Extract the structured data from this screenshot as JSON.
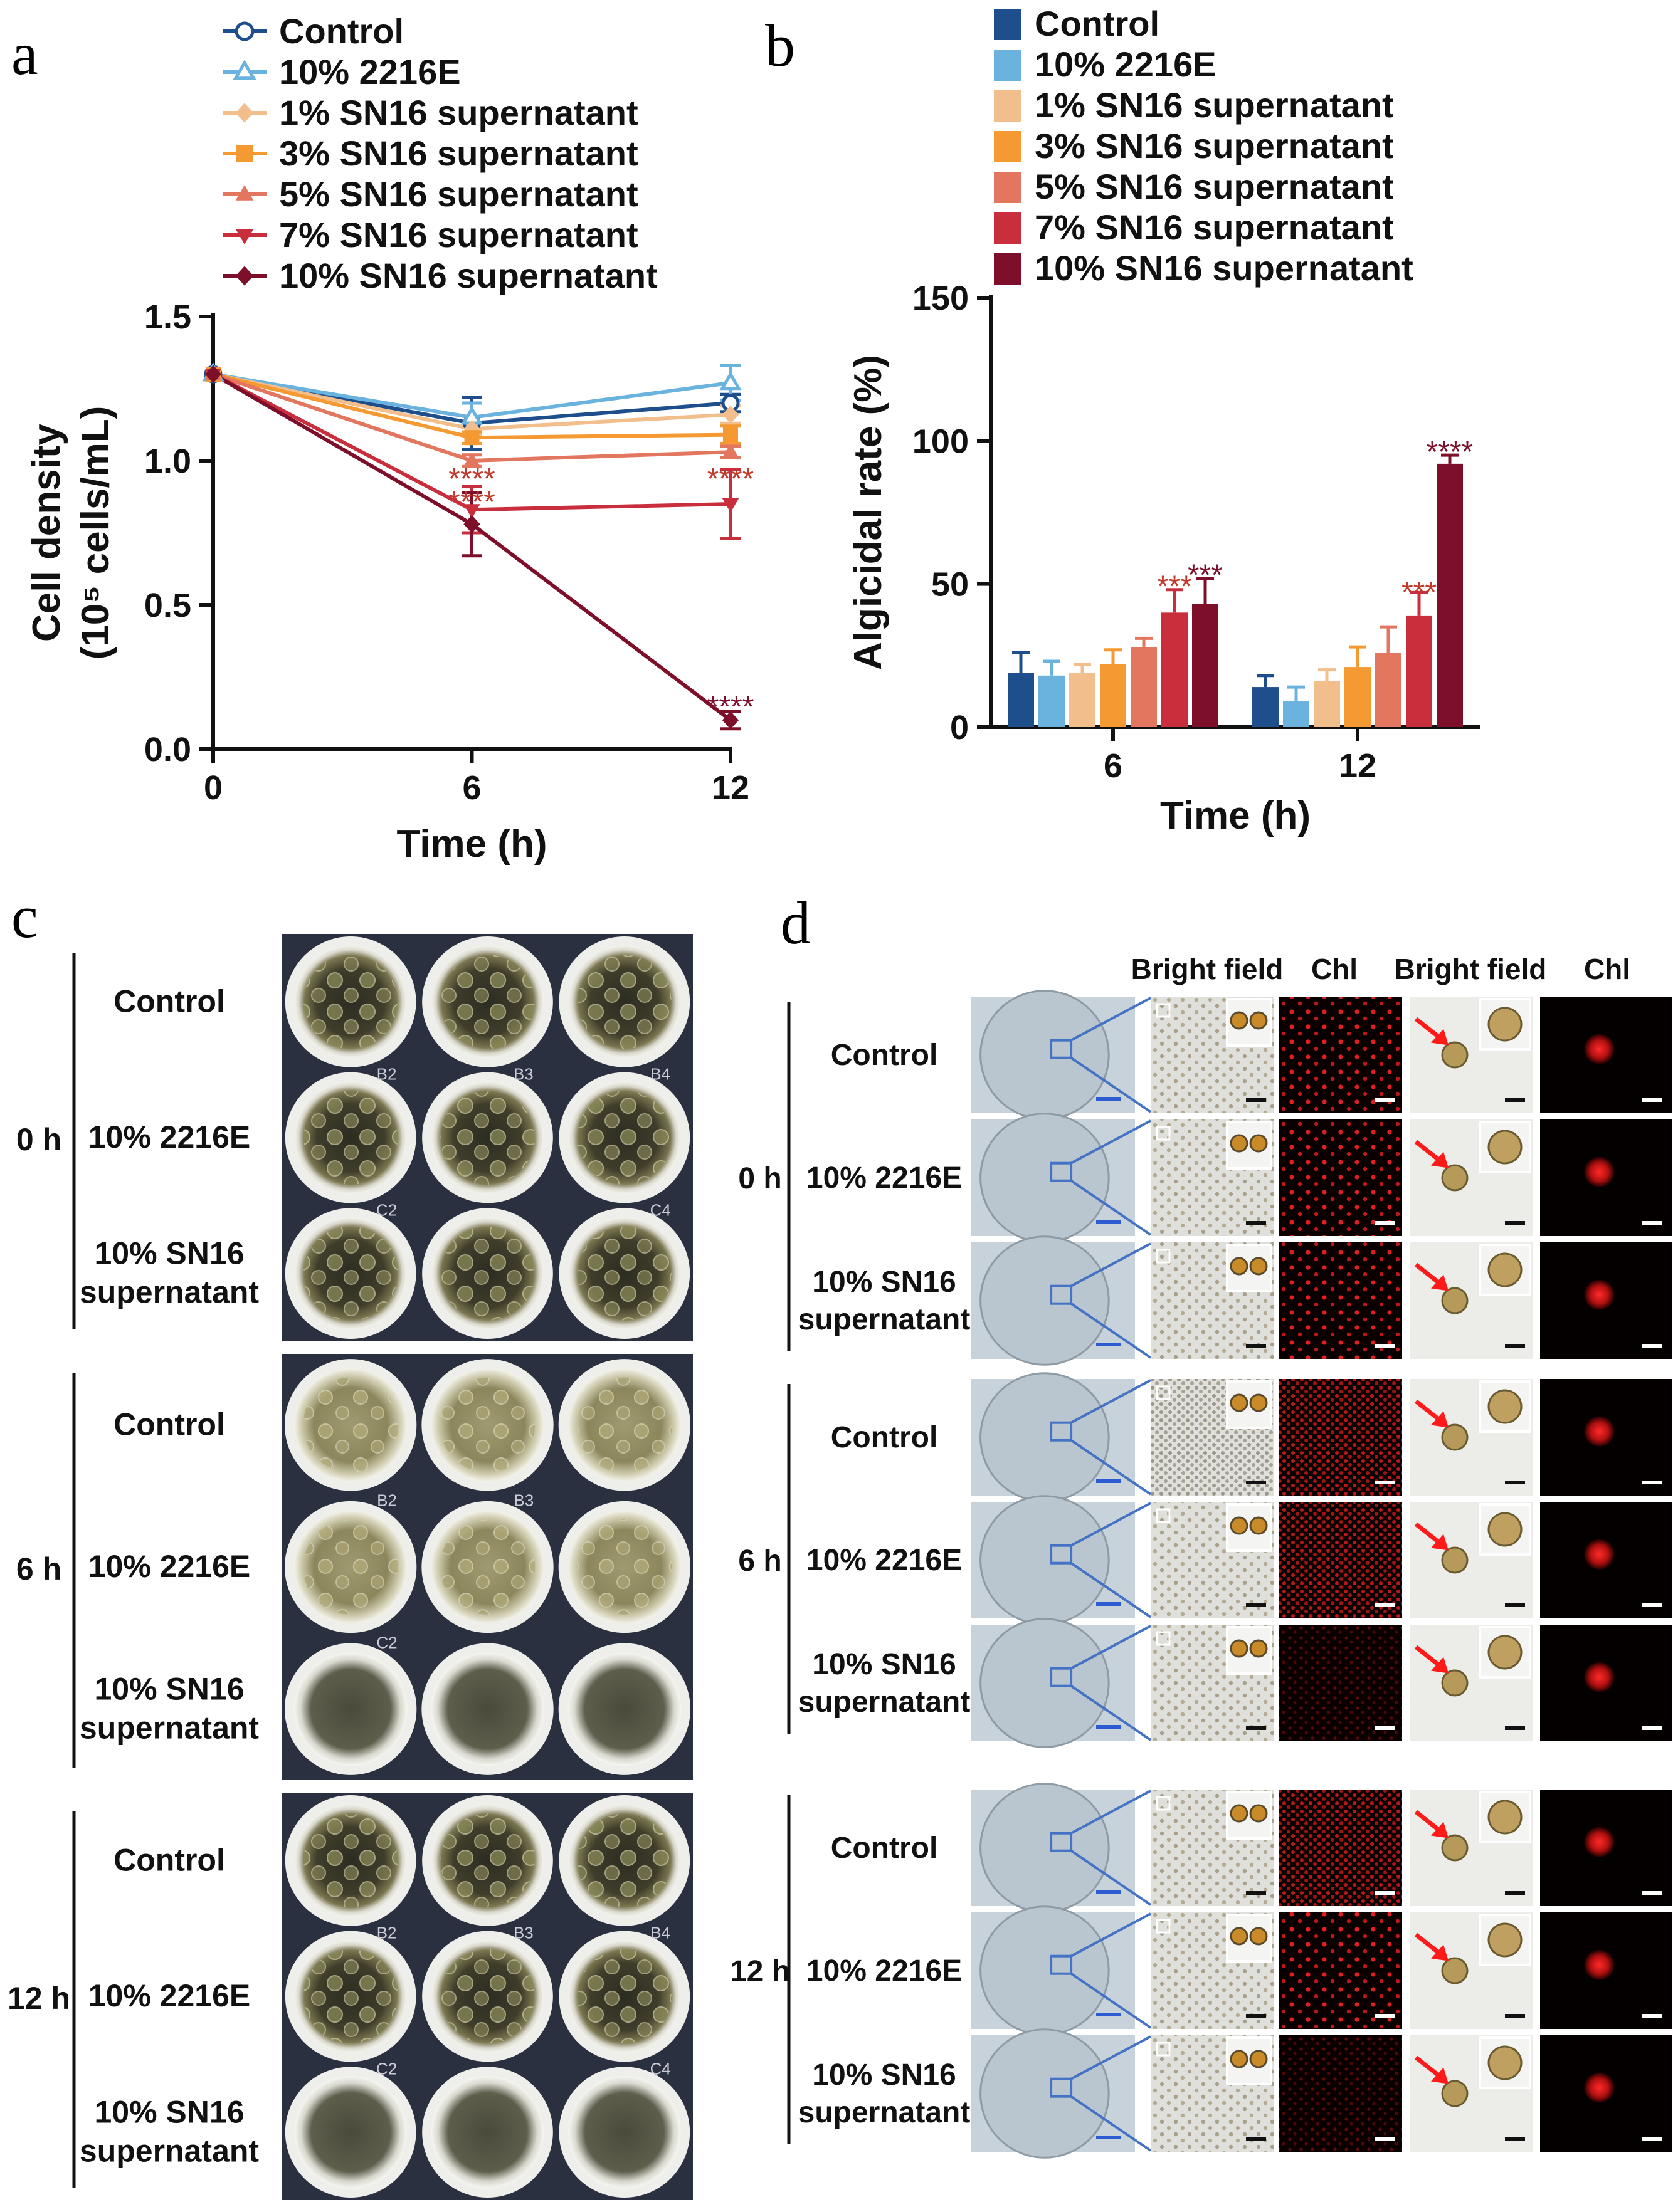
{
  "panels": {
    "a": "a",
    "b": "b",
    "c": "c",
    "d": "d"
  },
  "colors": {
    "control": "#1F4E8C",
    "e2216": "#6BB3DF",
    "s1": "#F2BE8C",
    "s3": "#F59A32",
    "s5": "#E3765E",
    "s7": "#C92E3C",
    "s10": "#7E0F2A",
    "sig_red": "#C0392B",
    "sig_dark": "#7E0F2A",
    "arrow": "#FF1A1A",
    "line_blue": "#4472C4"
  },
  "chart_data": [
    {
      "type": "line",
      "panel": "a",
      "xlabel": "Time (h)",
      "ylabel_line1": "Cell density",
      "ylabel_line2": "(10⁵ cells/mL)",
      "x": [
        0,
        6,
        12
      ],
      "xticks": [
        "0",
        "6",
        "12"
      ],
      "yticks": [
        "0.0",
        "0.5",
        "1.0",
        "1.5"
      ],
      "ylim": [
        0,
        1.5
      ],
      "series": [
        {
          "name": "Control",
          "values": [
            1.3,
            1.13,
            1.2
          ],
          "errors": [
            0,
            0.09,
            0.03
          ],
          "marker": "circle-open",
          "color_key": "control"
        },
        {
          "name": "10% 2216E",
          "values": [
            1.3,
            1.15,
            1.27
          ],
          "errors": [
            0,
            0.05,
            0.06
          ],
          "marker": "triangle-open",
          "color_key": "e2216"
        },
        {
          "name": "1% SN16 supernatant",
          "values": [
            1.3,
            1.11,
            1.16
          ],
          "errors": [
            0,
            0.02,
            0.03
          ],
          "marker": "diamond",
          "color_key": "s1"
        },
        {
          "name": "3% SN16 supernatant",
          "values": [
            1.3,
            1.08,
            1.09
          ],
          "errors": [
            0,
            0.02,
            0.03
          ],
          "marker": "square",
          "color_key": "s3"
        },
        {
          "name": "5% SN16 supernatant",
          "values": [
            1.3,
            1.0,
            1.03
          ],
          "errors": [
            0,
            0.02,
            0.02
          ],
          "marker": "triangle",
          "color_key": "s5"
        },
        {
          "name": "7% SN16 supernatant",
          "values": [
            1.3,
            0.83,
            0.85
          ],
          "errors": [
            0,
            0.08,
            0.12
          ],
          "marker": "triangle-down",
          "color_key": "s7"
        },
        {
          "name": "10% SN16 supernatant",
          "values": [
            1.3,
            0.78,
            0.1
          ],
          "errors": [
            0,
            0.11,
            0.03
          ],
          "marker": "diamond",
          "color_key": "s10"
        }
      ],
      "annotations": [
        {
          "text": "****",
          "x": 6,
          "y": 0.95,
          "color_key": "sig_red"
        },
        {
          "text": "****",
          "x": 6,
          "y": 0.87,
          "color_key": "sig_red"
        },
        {
          "text": "****",
          "x": 12,
          "y": 0.95,
          "color_key": "sig_red"
        },
        {
          "text": "****",
          "x": 12,
          "y": 0.16,
          "color_key": "sig_dark"
        }
      ]
    },
    {
      "type": "bar",
      "panel": "b",
      "xlabel": "Time (h)",
      "ylabel": "Algicidal rate (%)",
      "categories": [
        "6",
        "12"
      ],
      "yticks": [
        "0",
        "50",
        "100",
        "150"
      ],
      "ylim": [
        0,
        150
      ],
      "series": [
        {
          "name": "Control",
          "values": [
            19,
            14
          ],
          "errors": [
            7,
            4
          ],
          "color_key": "control"
        },
        {
          "name": "10% 2216E",
          "values": [
            18,
            9
          ],
          "errors": [
            5,
            5
          ],
          "color_key": "e2216"
        },
        {
          "name": "1% SN16 supernatant",
          "values": [
            19,
            16
          ],
          "errors": [
            3,
            4
          ],
          "color_key": "s1"
        },
        {
          "name": "3% SN16 supernatant",
          "values": [
            22,
            21
          ],
          "errors": [
            5,
            7
          ],
          "color_key": "s3"
        },
        {
          "name": "5% SN16 supernatant",
          "values": [
            28,
            26
          ],
          "errors": [
            3,
            9
          ],
          "color_key": "s5"
        },
        {
          "name": "7% SN16 supernatant",
          "values": [
            40,
            39
          ],
          "errors": [
            8,
            8
          ],
          "color_key": "s7"
        },
        {
          "name": "10% SN16 supernatant",
          "values": [
            43,
            92
          ],
          "errors": [
            9,
            3
          ],
          "color_key": "s10"
        }
      ],
      "annotations": [
        {
          "text": "***",
          "category": "6",
          "series": 5,
          "y": 50,
          "color_key": "sig_red"
        },
        {
          "text": "***",
          "category": "6",
          "series": 6,
          "y": 54,
          "color_key": "sig_dark"
        },
        {
          "text": "***",
          "category": "12",
          "series": 5,
          "y": 48,
          "color_key": "sig_red"
        },
        {
          "text": "****",
          "category": "12",
          "series": 6,
          "y": 97,
          "color_key": "sig_dark"
        }
      ]
    }
  ],
  "panel_c": {
    "groups": [
      {
        "time": "0 h",
        "rows": [
          "Control",
          "10% 2216E",
          "10% SN16\nsupernatant"
        ],
        "well_labels": [
          "",
          "",
          "",
          "B2",
          "B3",
          "B4",
          "C2",
          "",
          "C4"
        ]
      },
      {
        "time": "6 h",
        "rows": [
          "Control",
          "10% 2216E",
          "10% SN16\nsupernatant"
        ],
        "well_labels": [
          "",
          "",
          "",
          "B2",
          "B3",
          "",
          "C2",
          "",
          ""
        ]
      },
      {
        "time": "12 h",
        "rows": [
          "Control",
          "10% 2216E",
          "10% SN16\nsupernatant"
        ],
        "well_labels": [
          "",
          "",
          "",
          "B2",
          "B3",
          "B4",
          "C2",
          "",
          "C4"
        ]
      }
    ]
  },
  "panel_d": {
    "headers": [
      "Bright field",
      "Chl",
      "Bright field",
      "Chl"
    ],
    "groups": [
      {
        "time": "0 h",
        "rows": [
          "Control",
          "10% 2216E",
          "10% SN16\nsupernatant"
        ]
      },
      {
        "time": "6 h",
        "rows": [
          "Control",
          "10% 2216E",
          "10% SN16\nsupernatant"
        ]
      },
      {
        "time": "12 h",
        "rows": [
          "Control",
          "10% 2216E",
          "10% SN16\nsupernatant"
        ]
      }
    ]
  }
}
